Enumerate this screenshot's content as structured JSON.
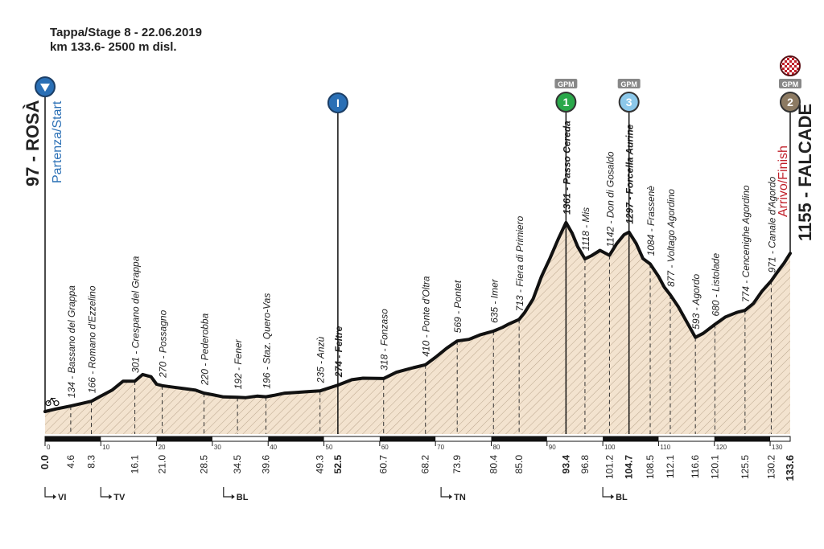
{
  "header": {
    "stage_line": "Tappa/Stage 8 - 22.06.2019",
    "info_line": "km 133.6- 2500 m disl."
  },
  "start": {
    "label": "97 - ROSÀ",
    "sub": "Partenza/Start"
  },
  "finish": {
    "label": "1155 - FALCADE",
    "sub": "Arrivo/Finish"
  },
  "sprint_marker": {
    "symbol": "I",
    "km": 52.5
  },
  "gpm_markers": [
    {
      "tag": "GPM",
      "cat": "1",
      "km": 93.4,
      "color": "#2aa84a"
    },
    {
      "tag": "GPM",
      "cat": "3",
      "km": 104.7,
      "color": "#8cc8ea"
    },
    {
      "tag": "GPM",
      "cat": "2",
      "km": 133.6,
      "color": "#8c7a62"
    }
  ],
  "province_labels": [
    {
      "text": "VI",
      "km": 0.0
    },
    {
      "text": "TV",
      "km": 10.0
    },
    {
      "text": "BL",
      "km": 32.0
    },
    {
      "text": "TN",
      "km": 71.0
    },
    {
      "text": "BL",
      "km": 100.0
    }
  ],
  "colors": {
    "profile_fill": "#f3e3cf",
    "profile_line": "#111111",
    "start_blue": "#2a6fb5",
    "finish_red": "#c0202a",
    "sprint_blue": "#2a6fb5"
  },
  "chart_data": {
    "type": "area",
    "title": "Tappa/Stage 8 - 22.06.2019",
    "subtitle": "km 133.6- 2500 m disl.",
    "xlabel": "",
    "ylabel": "",
    "xlim": [
      0,
      133.6
    ],
    "ylim": [
      0,
      1500
    ],
    "axis_ticks": [
      0,
      10,
      20,
      30,
      40,
      50,
      60,
      70,
      80,
      90,
      100,
      110,
      120,
      130
    ],
    "profile": {
      "x": [
        0,
        2,
        4.6,
        6.5,
        8.3,
        10,
        12,
        14,
        16.1,
        17.5,
        19,
        20,
        21,
        23,
        25,
        27,
        28.5,
        30,
        32,
        34.5,
        36,
        38,
        39.6,
        41,
        43,
        45,
        47,
        49.3,
        52.5,
        55,
        57,
        60.7,
        63,
        66,
        68.2,
        70,
        72,
        73.9,
        76,
        78,
        80.4,
        82,
        83,
        85,
        86,
        87.5,
        89,
        90.5,
        92,
        93.4,
        94.5,
        95.5,
        96.8,
        98,
        99.5,
        101.2,
        102.5,
        103.8,
        104.7,
        106,
        107.2,
        108.5,
        110,
        111,
        112.1,
        113.5,
        115,
        116.6,
        118,
        120.1,
        122,
        124,
        125.5,
        127,
        128.5,
        130.2,
        131.5,
        132.5,
        133.6
      ],
      "y": [
        97,
        115,
        134,
        150,
        166,
        200,
        240,
        300,
        301,
        345,
        330,
        280,
        270,
        260,
        250,
        240,
        220,
        210,
        195,
        192,
        190,
        200,
        196,
        205,
        220,
        225,
        230,
        235,
        274,
        310,
        320,
        318,
        360,
        390,
        410,
        460,
        520,
        569,
        580,
        610,
        635,
        660,
        680,
        713,
        760,
        850,
        1000,
        1120,
        1250,
        1361,
        1290,
        1200,
        1118,
        1140,
        1175,
        1142,
        1220,
        1280,
        1297,
        1220,
        1120,
        1084,
        1000,
        930,
        877,
        800,
        700,
        593,
        620,
        680,
        730,
        760,
        774,
        820,
        900,
        971,
        1040,
        1090,
        1155
      ]
    },
    "points": [
      {
        "km": 0.0,
        "alt": 97,
        "name": "ROSÀ"
      },
      {
        "km": 4.6,
        "alt": 134,
        "name": "Bassano del Grappa"
      },
      {
        "km": 8.3,
        "alt": 166,
        "name": "Romano d'Ezzelino"
      },
      {
        "km": 16.1,
        "alt": 301,
        "name": "Crespano del Grappa"
      },
      {
        "km": 21.0,
        "alt": 270,
        "name": "Possagno"
      },
      {
        "km": 28.5,
        "alt": 220,
        "name": "Pederobba"
      },
      {
        "km": 34.5,
        "alt": 192,
        "name": "Fener"
      },
      {
        "km": 39.6,
        "alt": 196,
        "name": "Staz. Quero-Vas"
      },
      {
        "km": 49.3,
        "alt": 235,
        "name": "Anzù"
      },
      {
        "km": 52.5,
        "alt": 274,
        "name": "Feltre"
      },
      {
        "km": 60.7,
        "alt": 318,
        "name": "Fonzaso"
      },
      {
        "km": 68.2,
        "alt": 410,
        "name": "Ponte d'Oltra"
      },
      {
        "km": 73.9,
        "alt": 569,
        "name": "Pontet"
      },
      {
        "km": 80.4,
        "alt": 635,
        "name": "Imer"
      },
      {
        "km": 85.0,
        "alt": 713,
        "name": "Fiera di Primiero"
      },
      {
        "km": 93.4,
        "alt": 1361,
        "name": "Passo Cereda"
      },
      {
        "km": 96.8,
        "alt": 1118,
        "name": "Mis"
      },
      {
        "km": 101.2,
        "alt": 1142,
        "name": "Don di Gosaldo"
      },
      {
        "km": 104.7,
        "alt": 1297,
        "name": "Forcella Aurine"
      },
      {
        "km": 108.5,
        "alt": 1084,
        "name": "Frassenè"
      },
      {
        "km": 112.1,
        "alt": 877,
        "name": "Voltago Agordino"
      },
      {
        "km": 116.6,
        "alt": 593,
        "name": "Agordo"
      },
      {
        "km": 120.1,
        "alt": 680,
        "name": "Listolade"
      },
      {
        "km": 125.5,
        "alt": 774,
        "name": "Cencenighe Agordino"
      },
      {
        "km": 130.2,
        "alt": 971,
        "name": "Canale d'Agordo"
      },
      {
        "km": 133.6,
        "alt": 1155,
        "name": "FALCADE"
      }
    ],
    "point_labels": [
      {
        "km": 4.6,
        "text": "134 - Bassano del Grappa",
        "km_text": "4.6",
        "bold": false
      },
      {
        "km": 8.3,
        "text": "166 - Romano d'Ezzelino",
        "km_text": "8.3",
        "bold": false
      },
      {
        "km": 16.1,
        "text": "301 - Crespano del Grappa",
        "km_text": "16.1",
        "bold": false
      },
      {
        "km": 21.0,
        "text": "270 - Possagno",
        "km_text": "21.0",
        "bold": false
      },
      {
        "km": 28.5,
        "text": "220 - Pederobba",
        "km_text": "28.5",
        "bold": false
      },
      {
        "km": 34.5,
        "text": "192 - Fener",
        "km_text": "34.5",
        "bold": false
      },
      {
        "km": 39.6,
        "text": "196 - Staz. Quero-Vas",
        "km_text": "39.6",
        "bold": false
      },
      {
        "km": 49.3,
        "text": "235 - Anzù",
        "km_text": "49.3",
        "bold": false
      },
      {
        "km": 52.5,
        "text": "274 - Feltre",
        "km_text": "52.5",
        "bold": true
      },
      {
        "km": 60.7,
        "text": "318 - Fonzaso",
        "km_text": "60.7",
        "bold": false
      },
      {
        "km": 68.2,
        "text": "410 - Ponte d'Oltra",
        "km_text": "68.2",
        "bold": false
      },
      {
        "km": 73.9,
        "text": "569 - Pontet",
        "km_text": "73.9",
        "bold": false
      },
      {
        "km": 80.4,
        "text": "635 - Imer",
        "km_text": "80.4",
        "bold": false
      },
      {
        "km": 85.0,
        "text": "713 - Fiera di Primiero",
        "km_text": "85.0",
        "bold": false
      },
      {
        "km": 93.4,
        "text": "1361 - Passo Cereda",
        "km_text": "93.4",
        "bold": true
      },
      {
        "km": 96.8,
        "text": "1118 - Mis",
        "km_text": "96.8",
        "bold": false
      },
      {
        "km": 101.2,
        "text": "1142 - Don di Gosaldo",
        "km_text": "101.2",
        "bold": false
      },
      {
        "km": 104.7,
        "text": "1297 - Forcella Aurine",
        "km_text": "104.7",
        "bold": true
      },
      {
        "km": 108.5,
        "text": "1084 - Frassenè",
        "km_text": "108.5",
        "bold": false
      },
      {
        "km": 112.1,
        "text": "877 - Voltago Agordino",
        "km_text": "112.1",
        "bold": false
      },
      {
        "km": 116.6,
        "text": "593 - Agordo",
        "km_text": "116.6",
        "bold": false
      },
      {
        "km": 120.1,
        "text": "680 - Listolade",
        "km_text": "120.1",
        "bold": false
      },
      {
        "km": 125.5,
        "text": "774 - Cencenighe Agordino",
        "km_text": "125.5",
        "bold": false
      },
      {
        "km": 130.2,
        "text": "971 - Canale d'Agordo",
        "km_text": "130.2",
        "bold": false
      }
    ],
    "start_km_text": "0.0",
    "finish_km_text": "133.6",
    "grid": false,
    "legend": "none"
  }
}
